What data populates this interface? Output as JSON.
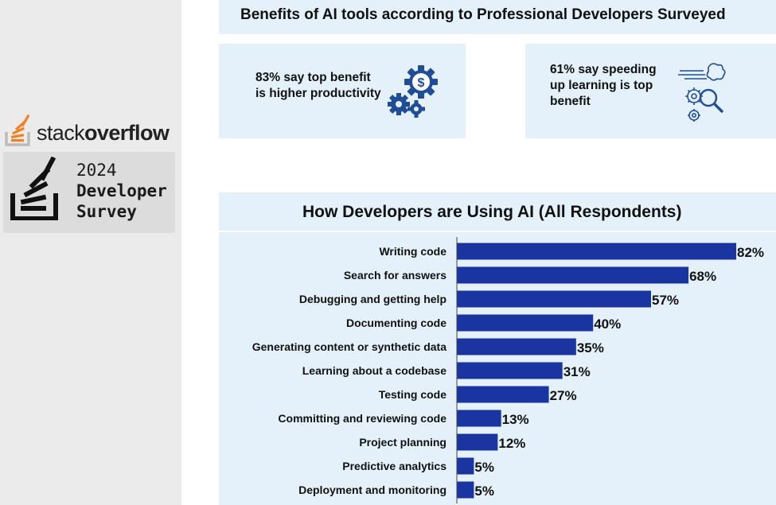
{
  "sidebar": {
    "logo_word_light": "stack",
    "logo_word_bold": "overflow",
    "survey_year": "2024",
    "survey_line1": "Developer",
    "survey_line2": "Survey"
  },
  "benefits": {
    "title": "Benefits of AI tools according to Professional Developers Surveyed",
    "card1_text": "83% say top benefit is higher productivity",
    "card1_icon": "gears-dollar-icon",
    "card2_text": "61% say speeding up learning is top benefit",
    "card2_icon": "gears-magnifier-icon"
  },
  "colors": {
    "panel_bg": "#e4f1fa",
    "bar": "#1a35a0",
    "accent_orange": "#f48024"
  },
  "chart_data": {
    "type": "bar",
    "orientation": "horizontal",
    "title": "How Developers are Using AI (All Respondents)",
    "categories": [
      "Writing code",
      "Search for answers",
      "Debugging and getting help",
      "Documenting code",
      "Generating content or synthetic data",
      "Learning about a codebase",
      "Testing code",
      "Committing and reviewing code",
      "Project planning",
      "Predictive analytics",
      "Deployment and monitoring"
    ],
    "values": [
      82,
      68,
      57,
      40,
      35,
      31,
      27,
      13,
      12,
      5,
      5
    ],
    "value_labels": [
      "82%",
      "68%",
      "57%",
      "40%",
      "35%",
      "31%",
      "27%",
      "13%",
      "12%",
      "5%",
      "5%"
    ],
    "xlim": [
      0,
      82
    ],
    "grid": false,
    "legend": "none"
  }
}
